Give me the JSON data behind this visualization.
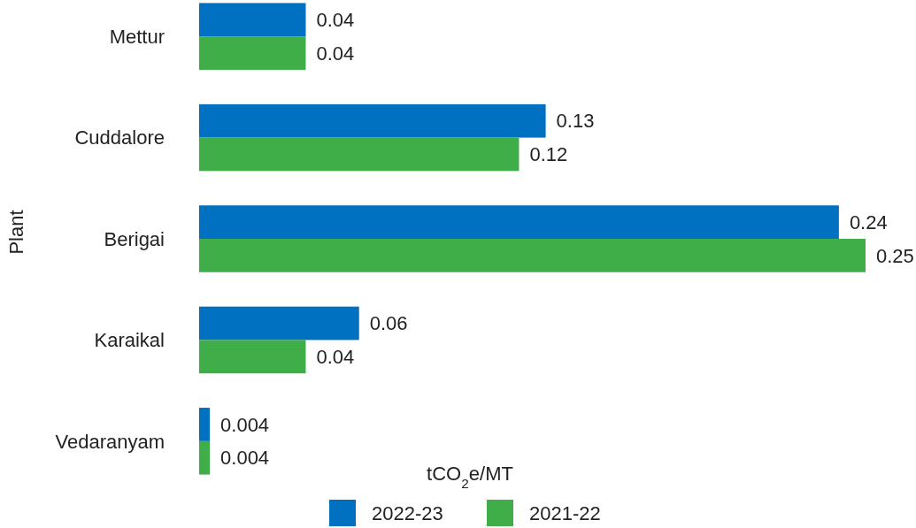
{
  "chart_data": {
    "type": "bar",
    "orientation": "horizontal",
    "xlabel": "tCO$_{2}$e/MT",
    "ylabel": "Plant",
    "categories": [
      "Mettur",
      "Cuddalore",
      "Berigai",
      "Karaikal",
      "Vedaranyam"
    ],
    "series": [
      {
        "name": "2022-23",
        "color": "#0070c0",
        "values": [
          0.04,
          0.13,
          0.24,
          0.06,
          0.004
        ]
      },
      {
        "name": "2021-22",
        "color": "#3fae49",
        "values": [
          0.04,
          0.12,
          0.25,
          0.04,
          0.004
        ]
      }
    ],
    "data_labels": true,
    "legend": "bottom"
  }
}
